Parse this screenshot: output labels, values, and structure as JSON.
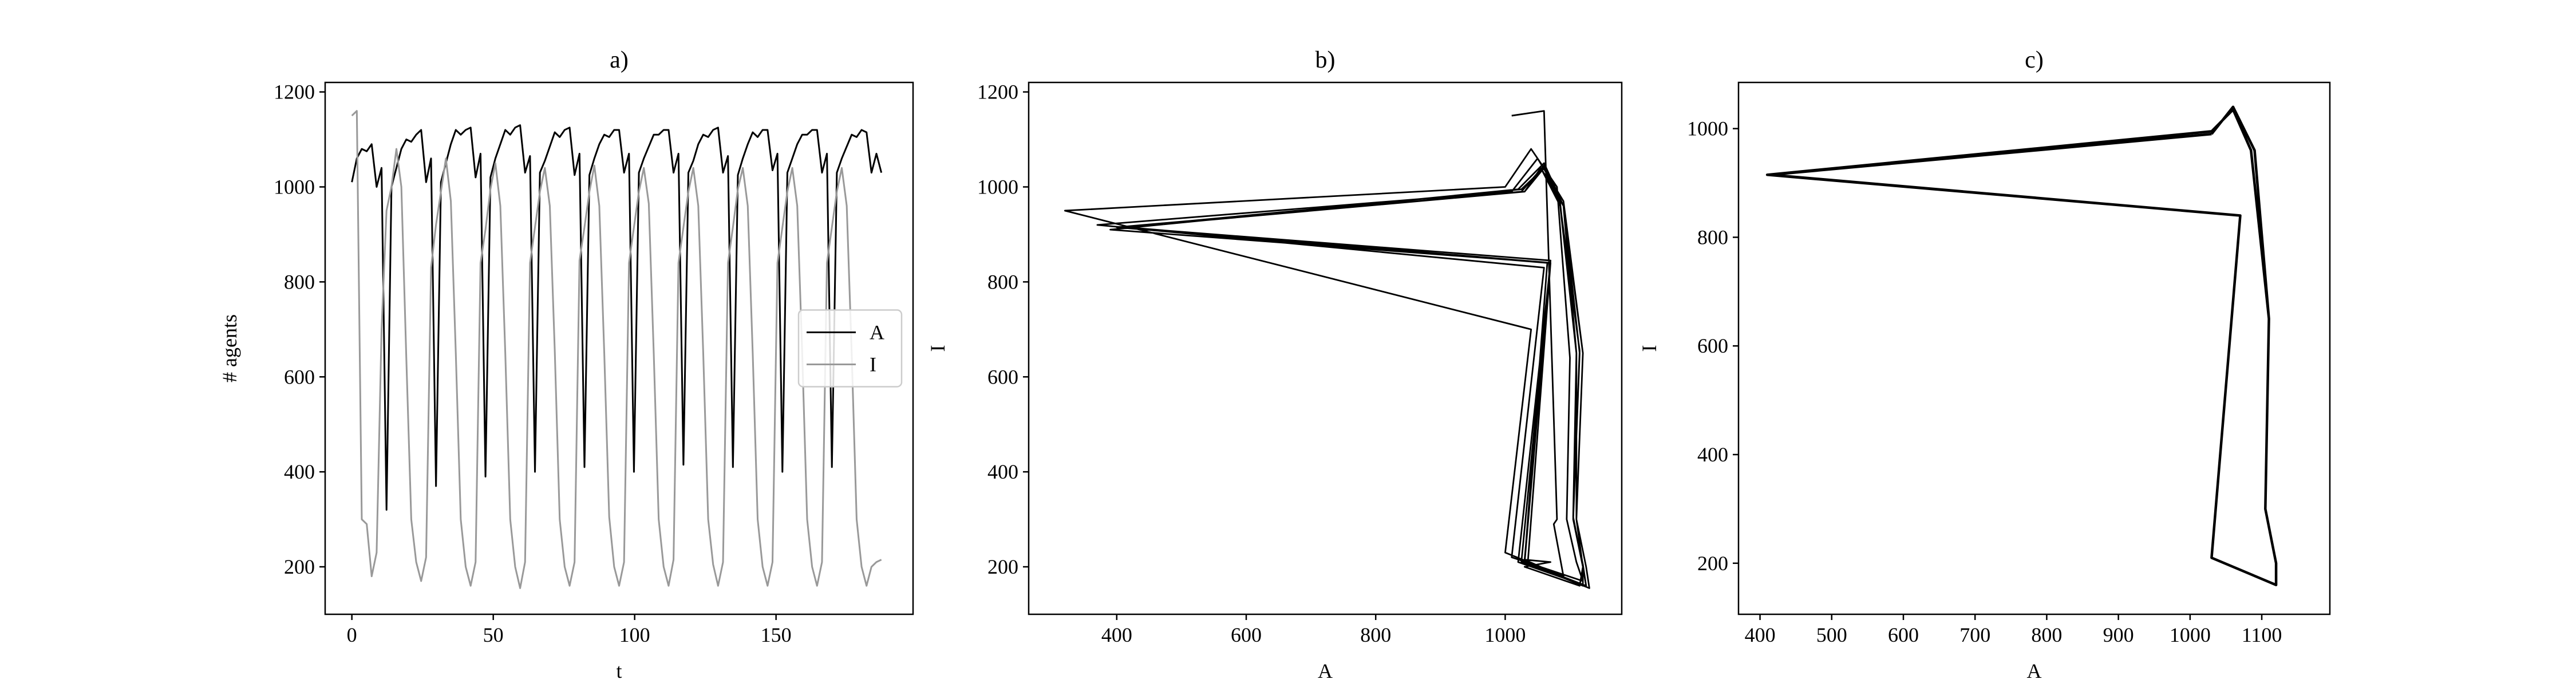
{
  "chart_data": [
    {
      "type": "line",
      "title": "a)",
      "x_label": "t",
      "y_label": "# agents",
      "x": [
        0,
        1.75,
        3.5,
        5.25,
        7,
        8.75,
        10.5,
        12.25,
        14,
        15.75,
        17.5,
        19.25,
        21,
        22.75,
        24.5,
        26.25,
        28,
        29.75,
        31.5,
        33.25,
        35,
        36.75,
        38.5,
        40.25,
        42,
        43.75,
        45.5,
        47.25,
        49,
        50.75,
        52.5,
        54.25,
        56,
        57.75,
        59.5,
        61.25,
        63,
        64.75,
        66.5,
        68.25,
        70,
        71.75,
        73.5,
        75.25,
        77,
        78.75,
        80.5,
        82.25,
        84,
        85.75,
        87.5,
        89.25,
        91,
        92.75,
        94.5,
        96.25,
        98,
        99.75,
        101.5,
        103.25,
        105,
        106.75,
        108.5,
        110.25,
        112,
        113.75,
        115.5,
        117.25,
        119,
        120.75,
        122.5,
        124.25,
        126,
        127.75,
        129.5,
        131.25,
        133,
        134.75,
        136.5,
        138.25,
        140,
        141.75,
        143.5,
        145.25,
        147,
        148.75,
        150.5,
        152.25,
        154,
        155.75,
        157.5,
        159.25,
        161,
        162.75,
        164.5,
        166.25,
        168,
        169.75,
        171.5,
        173.25,
        175,
        176.75,
        178.5,
        180.25,
        182,
        183.75,
        185.5,
        187.25
      ],
      "series": [
        {
          "name": "A",
          "color": "#000000",
          "values": [
            1010,
            1060,
            1080,
            1075,
            1090,
            1000,
            1040,
            320,
            1000,
            1040,
            1080,
            1100,
            1095,
            1110,
            1120,
            1010,
            1060,
            370,
            1010,
            1050,
            1090,
            1120,
            1110,
            1120,
            1125,
            1020,
            1070,
            390,
            1020,
            1060,
            1090,
            1120,
            1110,
            1125,
            1130,
            1030,
            1065,
            400,
            1030,
            1055,
            1085,
            1115,
            1105,
            1120,
            1125,
            1025,
            1070,
            410,
            1025,
            1060,
            1090,
            1110,
            1105,
            1120,
            1120,
            1030,
            1070,
            400,
            1030,
            1060,
            1085,
            1110,
            1110,
            1120,
            1120,
            1030,
            1070,
            415,
            1030,
            1055,
            1090,
            1110,
            1105,
            1120,
            1125,
            1030,
            1065,
            410,
            1025,
            1060,
            1090,
            1115,
            1105,
            1120,
            1120,
            1035,
            1070,
            400,
            1030,
            1060,
            1090,
            1110,
            1110,
            1120,
            1120,
            1030,
            1070,
            410,
            1030,
            1060,
            1085,
            1110,
            1105,
            1120,
            1115,
            1030,
            1070,
            1030
          ]
        },
        {
          "name": "I",
          "color": "#999999",
          "values": [
            1150,
            1160,
            300,
            290,
            180,
            230,
            700,
            950,
            1000,
            1080,
            1000,
            640,
            300,
            210,
            170,
            220,
            830,
            920,
            990,
            1060,
            970,
            650,
            300,
            200,
            160,
            210,
            840,
            910,
            995,
            1050,
            960,
            650,
            300,
            200,
            155,
            210,
            840,
            915,
            990,
            1040,
            960,
            655,
            300,
            200,
            160,
            210,
            845,
            915,
            990,
            1045,
            960,
            650,
            305,
            200,
            160,
            210,
            840,
            915,
            990,
            1040,
            965,
            650,
            300,
            200,
            160,
            215,
            840,
            915,
            990,
            1040,
            960,
            650,
            300,
            205,
            160,
            210,
            840,
            915,
            995,
            1040,
            960,
            650,
            300,
            200,
            160,
            210,
            840,
            915,
            990,
            1040,
            960,
            650,
            300,
            200,
            160,
            210,
            840,
            915,
            990,
            1040,
            960,
            650,
            300,
            200,
            160,
            200,
            210,
            215
          ]
        }
      ],
      "xlim": [
        -9.45,
        198.45
      ],
      "xticks": [
        0,
        50,
        100,
        150
      ],
      "ylim": [
        100,
        1220
      ],
      "yticks": [
        200,
        400,
        600,
        800,
        1000,
        1200
      ],
      "legend": "center right"
    },
    {
      "type": "phase",
      "title": "b)",
      "x_label": "A",
      "y_label": "I",
      "xlim": [
        264,
        1180
      ],
      "xticks": [
        400,
        600,
        800,
        1000
      ],
      "ylim": [
        100,
        1220
      ],
      "yticks": [
        200,
        400,
        600,
        800,
        1000,
        1200
      ]
    },
    {
      "type": "trajectory",
      "title": "c)",
      "x_label": "A",
      "y_label": "I",
      "x": [
        1030,
        1060,
        1090,
        1110,
        1105,
        1120,
        1120,
        1030,
        1070,
        410,
        1030,
        1060,
        1085,
        1110,
        1105,
        1120,
        1120,
        1030,
        1070,
        415,
        1030
      ],
      "series": [
        {
          "color": "#000000",
          "values": [
            990,
            1040,
            960,
            650,
            300,
            200,
            160,
            210,
            840,
            915,
            995,
            1035,
            960,
            650,
            300,
            200,
            160,
            210,
            840,
            915,
            990
          ]
        }
      ],
      "xlim": [
        370,
        1195
      ],
      "xticks": [
        400,
        500,
        600,
        700,
        800,
        900,
        1000,
        1100
      ],
      "ylim": [
        106,
        1085
      ],
      "yticks": [
        200,
        400,
        600,
        800,
        1000
      ]
    }
  ]
}
